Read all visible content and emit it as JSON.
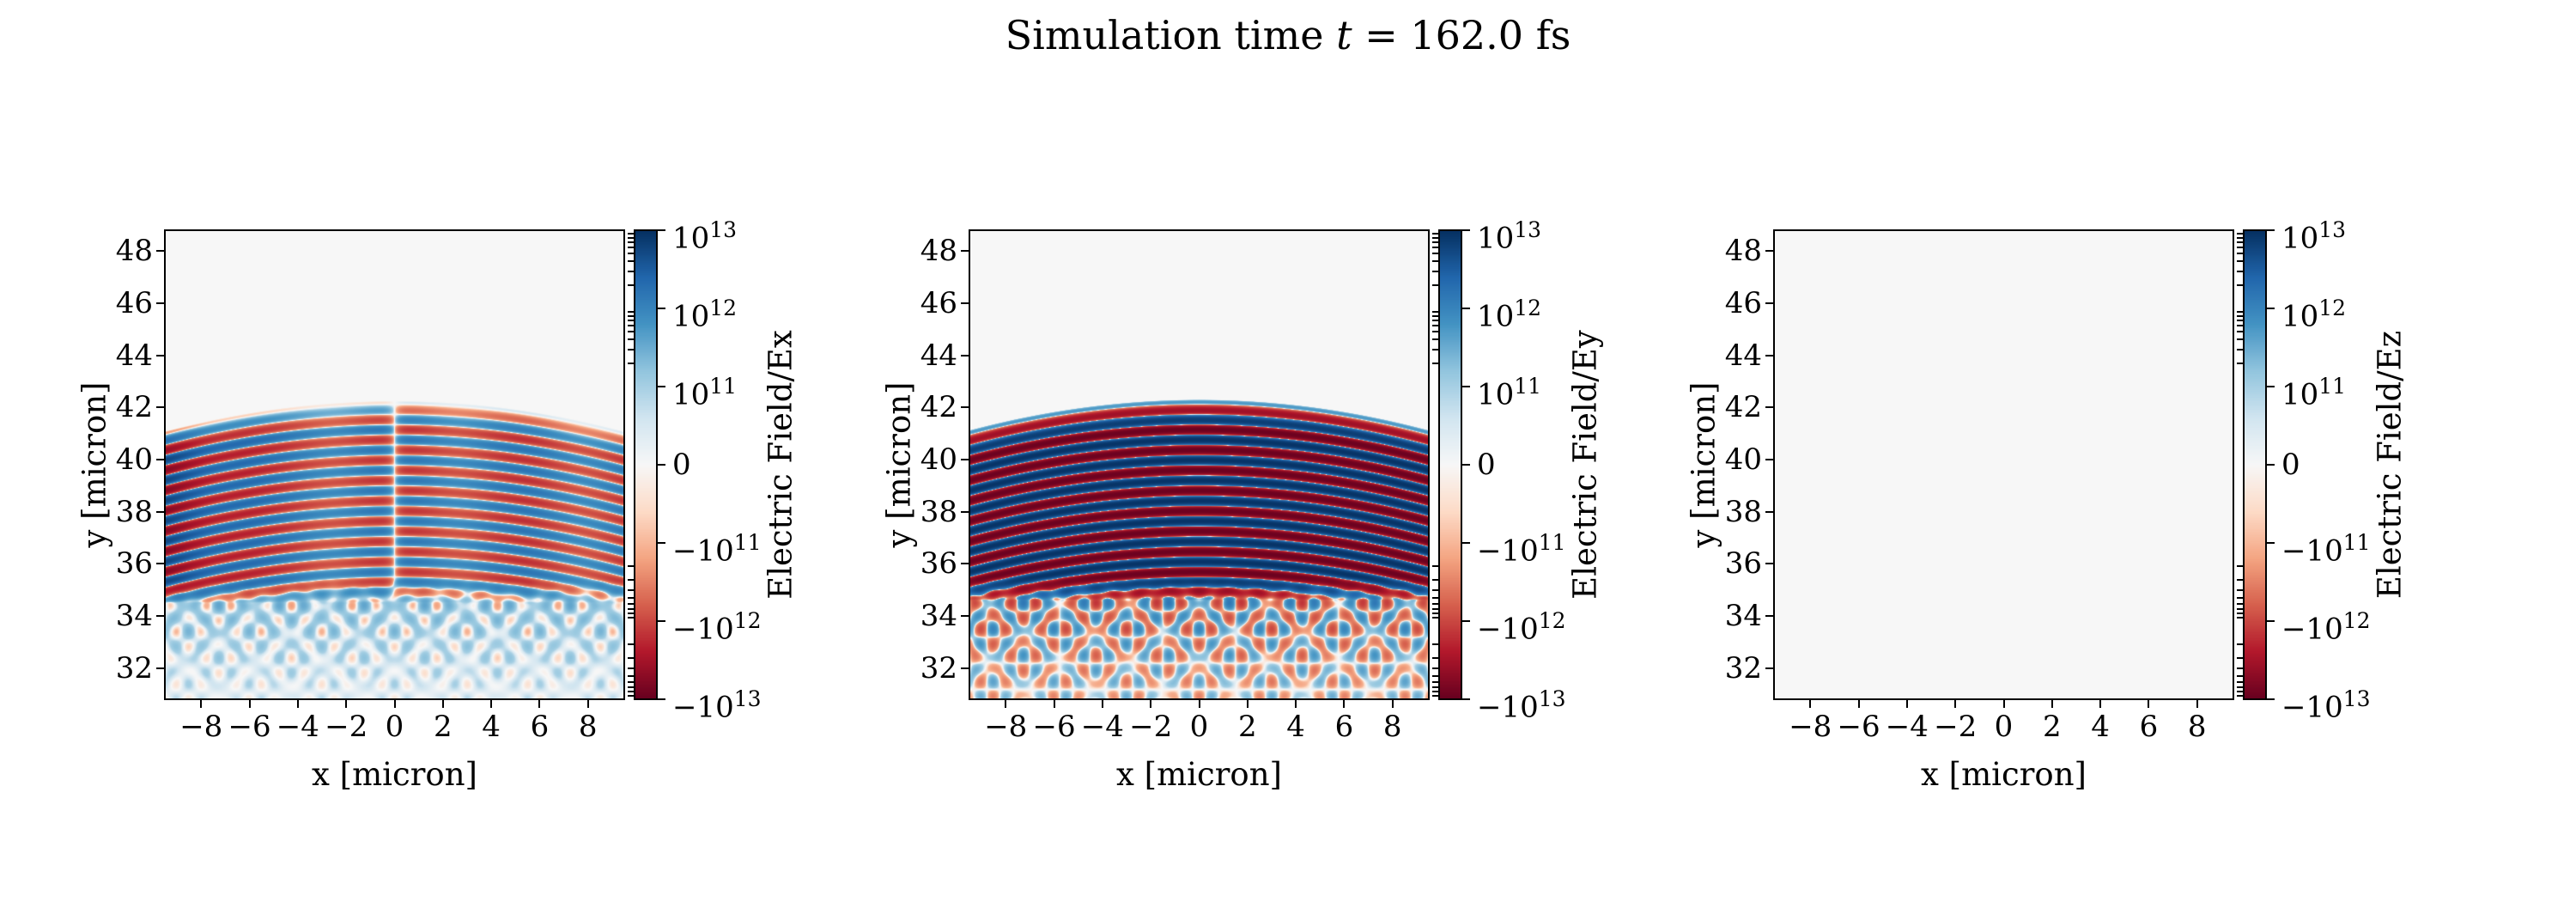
{
  "figure": {
    "title": {
      "prefix": "Simulation time ",
      "variable": "t",
      "suffix": " = 162.0 fs"
    },
    "background": "#ffffff"
  },
  "colormap": {
    "name": "RdBu",
    "stops": [
      "#67001f",
      "#b2182b",
      "#d6604d",
      "#f4a582",
      "#fddbc7",
      "#f7f7f7",
      "#d1e5f0",
      "#92c5de",
      "#4393c3",
      "#2166ac",
      "#053061"
    ]
  },
  "norm": {
    "type": "symlog",
    "linthresh": 100000000000.0,
    "vmin": -10000000000000.0,
    "vmax": 10000000000000.0,
    "decades": 2
  },
  "chart_data": [
    {
      "type": "heatmap",
      "xlabel": "x [micron]",
      "ylabel": "y [micron]",
      "colorbar_label": "Electric Field/Ex",
      "x_range": [
        -9.5,
        9.5
      ],
      "y_range": [
        30.8,
        48.8
      ],
      "x_tick_values": [
        -8,
        -6,
        -4,
        -2,
        0,
        2,
        4,
        6,
        8
      ],
      "x_tick_labels": [
        "−8",
        "−6",
        "−4",
        "−2",
        "0",
        "2",
        "4",
        "6",
        "8"
      ],
      "y_tick_values": [
        32,
        34,
        36,
        38,
        40,
        42,
        44,
        46,
        48
      ],
      "y_tick_labels": [
        "32",
        "34",
        "36",
        "38",
        "40",
        "42",
        "44",
        "46",
        "48"
      ],
      "colorbar_ticks": [
        {
          "value": 10000000000000.0,
          "label": "10^13"
        },
        {
          "value": 1000000000000.0,
          "label": "10^12"
        },
        {
          "value": 100000000000.0,
          "label": "10^11"
        },
        {
          "value": 0,
          "label": "0"
        },
        {
          "value": -100000000000.0,
          "label": "−10^11"
        },
        {
          "value": -1000000000000.0,
          "label": "−10^12"
        },
        {
          "value": -10000000000000.0,
          "label": "−10^13"
        }
      ],
      "colorbar_minor_decades": [
        100000000000.0,
        1000000000000.0
      ],
      "field": {
        "component": "Ex",
        "wavelength": 0.78,
        "front_y": 42.25,
        "front_curvature": 0.013,
        "stripe_bottom": 35.4,
        "amplitude": 1600000000000.0,
        "edge_boost": 3.0,
        "edge_center": -9.5,
        "edge_sigma": 2.6,
        "odd_x": true,
        "center_node_width": 0.35,
        "column_period": 5.2,
        "column_depth": 0.45,
        "interference": {
          "amplitude": 350000000000.0,
          "dc": 150000000000.0,
          "top": 35.4,
          "decay": 2.6,
          "theta1": 40,
          "theta2": 66,
          "origin_y": 35.4
        }
      }
    },
    {
      "type": "heatmap",
      "xlabel": "x [micron]",
      "ylabel": "y [micron]",
      "colorbar_label": "Electric Field/Ey",
      "x_range": [
        -9.5,
        9.5
      ],
      "y_range": [
        30.8,
        48.8
      ],
      "x_tick_values": [
        -8,
        -6,
        -4,
        -2,
        0,
        2,
        4,
        6,
        8
      ],
      "x_tick_labels": [
        "−8",
        "−6",
        "−4",
        "−2",
        "0",
        "2",
        "4",
        "6",
        "8"
      ],
      "y_tick_values": [
        32,
        34,
        36,
        38,
        40,
        42,
        44,
        46,
        48
      ],
      "y_tick_labels": [
        "32",
        "34",
        "36",
        "38",
        "40",
        "42",
        "44",
        "46",
        "48"
      ],
      "colorbar_ticks": [
        {
          "value": 10000000000000.0,
          "label": "10^13"
        },
        {
          "value": 1000000000000.0,
          "label": "10^12"
        },
        {
          "value": 100000000000.0,
          "label": "10^11"
        },
        {
          "value": 0,
          "label": "0"
        },
        {
          "value": -100000000000.0,
          "label": "−10^11"
        },
        {
          "value": -1000000000000.0,
          "label": "−10^12"
        },
        {
          "value": -10000000000000.0,
          "label": "−10^13"
        }
      ],
      "colorbar_minor_decades": [
        100000000000.0,
        1000000000000.0
      ],
      "field": {
        "component": "Ey",
        "wavelength": 0.78,
        "front_y": 42.3,
        "front_curvature": 0.013,
        "stripe_bottom": 35.5,
        "amplitude": 9000000000000.0,
        "edge_boost": 0,
        "edge_center": 0,
        "edge_sigma": 1,
        "odd_x": false,
        "center_node_width": 1,
        "column_period": 0,
        "column_depth": 0,
        "interference": {
          "amplitude": 1800000000000.0,
          "dc": 0,
          "top": 35.5,
          "decay": 2.6,
          "theta1": 40,
          "theta2": 66,
          "origin_y": 35.5
        }
      }
    },
    {
      "type": "heatmap",
      "xlabel": "x [micron]",
      "ylabel": "y [micron]",
      "colorbar_label": "Electric Field/Ez",
      "x_range": [
        -9.5,
        9.5
      ],
      "y_range": [
        30.8,
        48.8
      ],
      "x_tick_values": [
        -8,
        -6,
        -4,
        -2,
        0,
        2,
        4,
        6,
        8
      ],
      "x_tick_labels": [
        "−8",
        "−6",
        "−4",
        "−2",
        "0",
        "2",
        "4",
        "6",
        "8"
      ],
      "y_tick_values": [
        32,
        34,
        36,
        38,
        40,
        42,
        44,
        46,
        48
      ],
      "y_tick_labels": [
        "32",
        "34",
        "36",
        "38",
        "40",
        "42",
        "44",
        "46",
        "48"
      ],
      "colorbar_ticks": [
        {
          "value": 10000000000000.0,
          "label": "10^13"
        },
        {
          "value": 1000000000000.0,
          "label": "10^12"
        },
        {
          "value": 100000000000.0,
          "label": "10^11"
        },
        {
          "value": 0,
          "label": "0"
        },
        {
          "value": -100000000000.0,
          "label": "−10^11"
        },
        {
          "value": -1000000000000.0,
          "label": "−10^12"
        },
        {
          "value": -10000000000000.0,
          "label": "−10^13"
        }
      ],
      "colorbar_minor_decades": [
        100000000000.0,
        1000000000000.0
      ],
      "field": {
        "component": "Ez",
        "wavelength": 0.78,
        "front_y": 0,
        "front_curvature": 0,
        "stripe_bottom": 0,
        "amplitude": 0,
        "edge_boost": 0,
        "edge_center": 0,
        "edge_sigma": 1,
        "odd_x": false,
        "center_node_width": 1,
        "column_period": 0,
        "column_depth": 0,
        "interference": {
          "amplitude": 0,
          "dc": 0,
          "top": 0,
          "decay": 1,
          "theta1": 40,
          "theta2": 66,
          "origin_y": 0
        }
      }
    }
  ]
}
